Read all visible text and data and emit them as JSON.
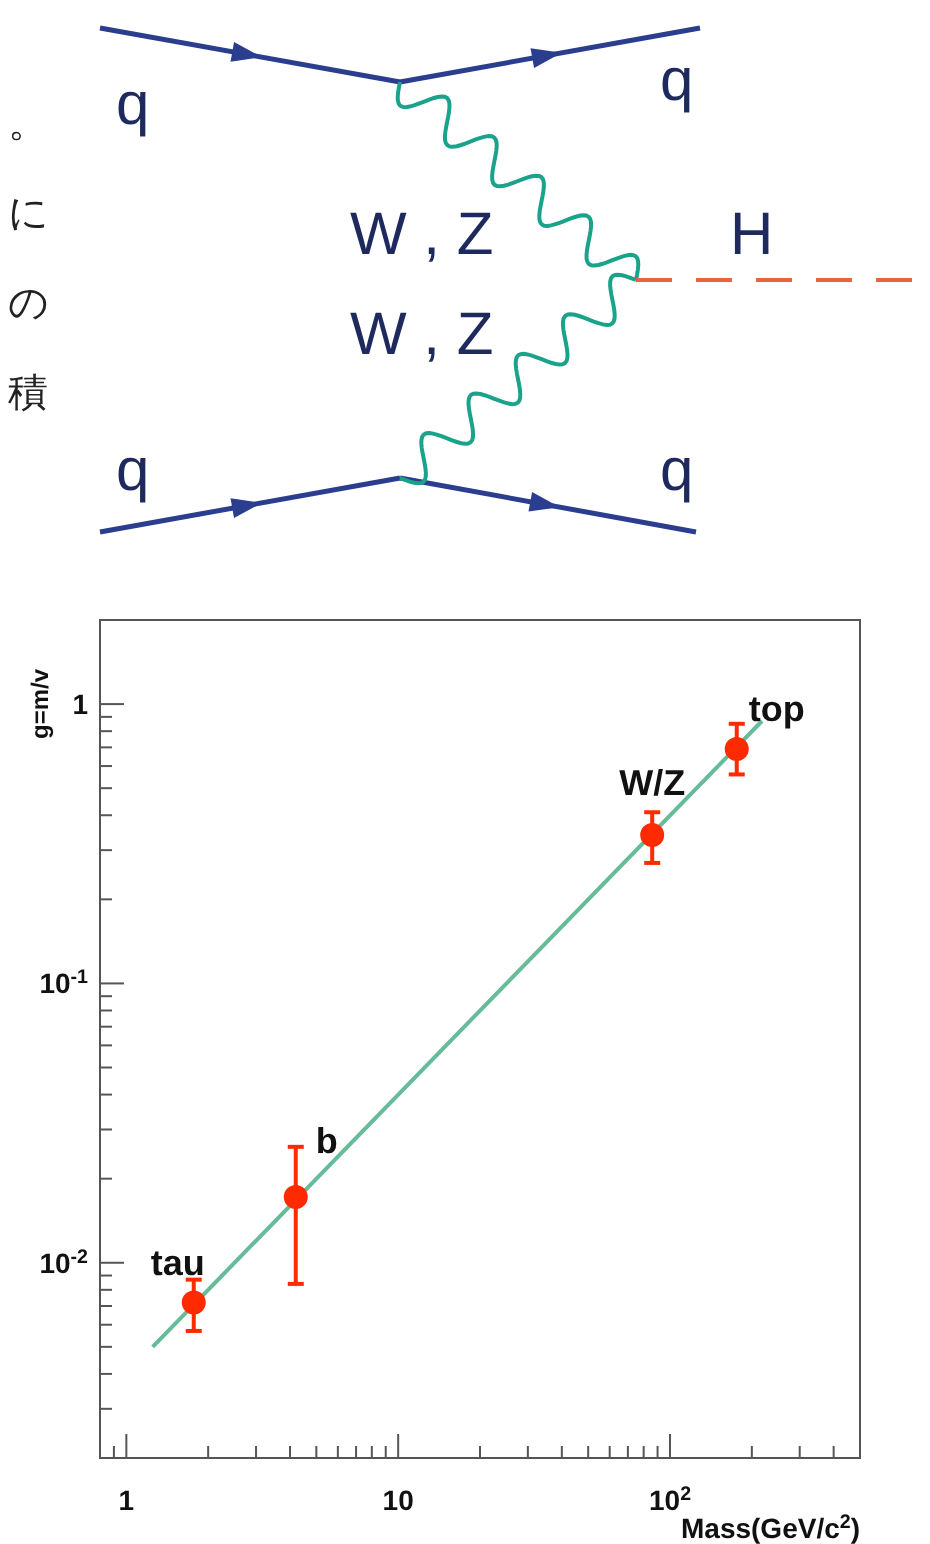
{
  "chart_data": {
    "type": "scatter",
    "xlabel": "Mass(GeV/c$^{2}$)",
    "ylabel": "g=m/v",
    "log": "xy",
    "xlim": [
      0.8,
      500
    ],
    "ylim": [
      0.002,
      2
    ],
    "xticks": [
      {
        "value": 0.9,
        "label": null
      },
      1,
      {
        "value": 2,
        "label": null
      },
      {
        "value": 3,
        "label": null
      },
      {
        "value": 4,
        "label": null
      },
      {
        "value": 5,
        "label": null
      },
      {
        "value": 6,
        "label": null
      },
      {
        "value": 7,
        "label": null
      },
      {
        "value": 8,
        "label": null
      },
      {
        "value": 9,
        "label": null
      },
      10,
      {
        "value": 20,
        "label": null
      },
      {
        "value": 30,
        "label": null
      },
      {
        "value": 40,
        "label": null
      },
      {
        "value": 50,
        "label": null
      },
      {
        "value": 60,
        "label": null
      },
      {
        "value": 70,
        "label": null
      },
      {
        "value": 80,
        "label": null
      },
      {
        "value": 90,
        "label": null
      },
      {
        "value": 100,
        "label": "10$^{2}$"
      },
      {
        "value": 200,
        "label": null
      },
      {
        "value": 300,
        "label": null
      },
      {
        "value": 400,
        "label": null
      },
      {
        "value": 500,
        "label": null
      }
    ],
    "yticks": [
      {
        "value": 0.002,
        "label": null
      },
      {
        "value": 0.003,
        "label": null
      },
      {
        "value": 0.004,
        "label": null
      },
      {
        "value": 0.005,
        "label": null
      },
      {
        "value": 0.006,
        "label": null
      },
      {
        "value": 0.007,
        "label": null
      },
      {
        "value": 0.008,
        "label": null
      },
      {
        "value": 0.009,
        "label": null
      },
      {
        "value": 0.01,
        "label": "10$^{-2}$"
      },
      {
        "value": 0.02,
        "label": null
      },
      {
        "value": 0.03,
        "label": null
      },
      {
        "value": 0.04,
        "label": null
      },
      {
        "value": 0.05,
        "label": null
      },
      {
        "value": 0.06,
        "label": null
      },
      {
        "value": 0.07,
        "label": null
      },
      {
        "value": 0.08,
        "label": null
      },
      {
        "value": 0.09,
        "label": null
      },
      {
        "value": 0.1,
        "label": "10$^{-1}$"
      },
      {
        "value": 0.2,
        "label": null
      },
      {
        "value": 0.3,
        "label": null
      },
      {
        "value": 0.4,
        "label": null
      },
      {
        "value": 0.5,
        "label": null
      },
      {
        "value": 0.6,
        "label": null
      },
      {
        "value": 0.7,
        "label": null
      },
      {
        "value": 0.8,
        "label": null
      },
      {
        "value": 0.9,
        "label": null
      },
      1,
      {
        "value": 2,
        "label": null
      }
    ],
    "series": [
      {
        "type": "line",
        "color": "#66bb99",
        "x": [
          1.25,
          218
        ],
        "values": [
          0.005,
          0.87
        ]
      },
      {
        "type": "scatter",
        "marker": "circle",
        "color": "#ff2a00",
        "x": [
          1.77,
          4.2,
          86,
          176
        ],
        "values": [
          0.0072,
          0.0172,
          0.34,
          0.69
        ],
        "errors": [
          [
            0.0057,
            0.0087
          ],
          [
            0.0084,
            0.026
          ],
          [
            0.27,
            0.41
          ],
          [
            0.56,
            0.85
          ]
        ]
      }
    ],
    "annotations": [
      "q",
      "q",
      "q",
      "q",
      "W , Z",
      "W , Z",
      "H",
      "。",
      "に",
      "の",
      "積",
      {
        "text": "tau",
        "x": 1.77,
        "y": 0.0072
      },
      {
        "text": "b",
        "x": 4.2,
        "y": 0.0172
      },
      {
        "text": "W/Z",
        "x": 86,
        "y": 0.34
      },
      {
        "text": "top",
        "x": 176,
        "y": 0.69
      }
    ]
  }
}
